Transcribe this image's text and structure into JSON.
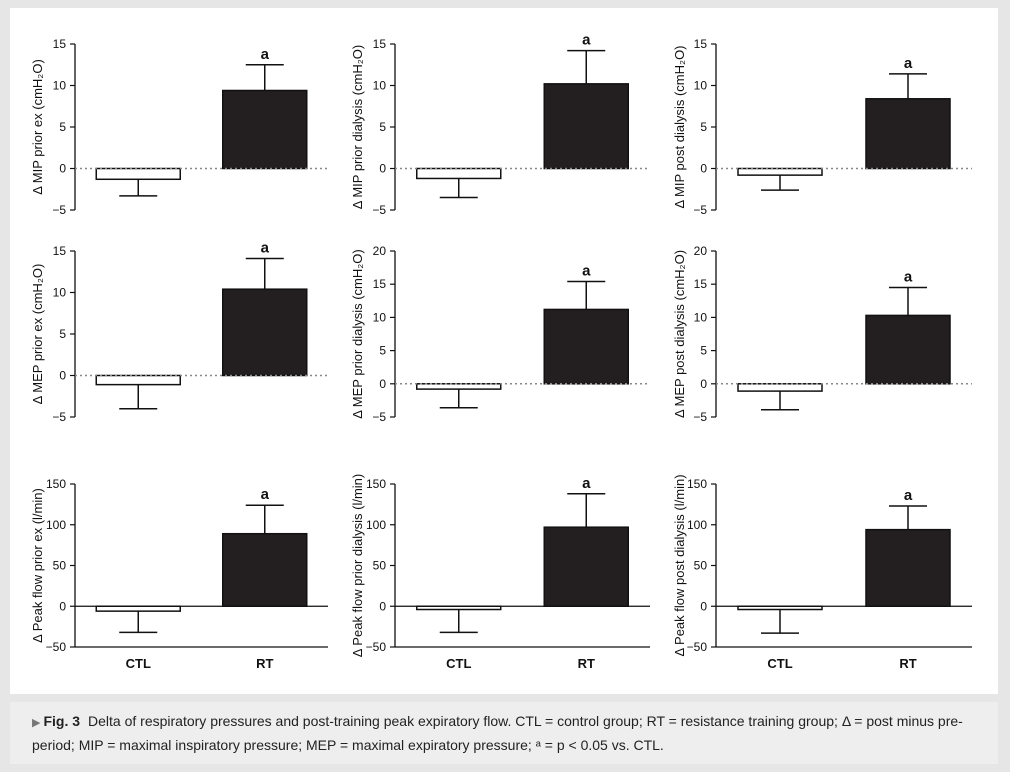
{
  "chart_data": [
    {
      "type": "bar",
      "ylabel": "Δ MIP prior ex (cmH₂O)",
      "categories": [
        "CTL",
        "RT"
      ],
      "values": [
        -1.3,
        9.4
      ],
      "errors": [
        2.0,
        3.1
      ],
      "annotations": [
        "",
        "a"
      ],
      "yticks": [
        -5,
        0,
        5,
        10,
        15
      ],
      "ylim": [
        -5,
        15
      ],
      "show_xlabels": false
    },
    {
      "type": "bar",
      "ylabel": "Δ MIP prior dialysis (cmH₂O)",
      "categories": [
        "CTL",
        "RT"
      ],
      "values": [
        -1.2,
        10.2
      ],
      "errors": [
        2.3,
        4.0
      ],
      "annotations": [
        "",
        "a"
      ],
      "yticks": [
        -5,
        0,
        5,
        10,
        15
      ],
      "ylim": [
        -5,
        15
      ],
      "show_xlabels": false
    },
    {
      "type": "bar",
      "ylabel": "Δ MIP post dialysis (cmH₂O)",
      "categories": [
        "CTL",
        "RT"
      ],
      "values": [
        -0.8,
        8.4
      ],
      "errors": [
        1.8,
        3.0
      ],
      "annotations": [
        "",
        "a"
      ],
      "yticks": [
        -5,
        0,
        5,
        10,
        15
      ],
      "ylim": [
        -5,
        15
      ],
      "show_xlabels": false
    },
    {
      "type": "bar",
      "ylabel": "Δ MEP prior ex (cmH₂O)",
      "categories": [
        "CTL",
        "RT"
      ],
      "values": [
        -1.1,
        10.4
      ],
      "errors": [
        2.9,
        3.7
      ],
      "annotations": [
        "",
        "a"
      ],
      "yticks": [
        -5,
        0,
        5,
        10,
        15
      ],
      "ylim": [
        -5,
        15
      ],
      "show_xlabels": false
    },
    {
      "type": "bar",
      "ylabel": "Δ MEP prior dialysis (cmH₂O)",
      "categories": [
        "CTL",
        "RT"
      ],
      "values": [
        -0.8,
        11.2
      ],
      "errors": [
        2.8,
        4.2
      ],
      "annotations": [
        "",
        "a"
      ],
      "yticks": [
        -5,
        0,
        5,
        10,
        15,
        20
      ],
      "ylim": [
        -5,
        20
      ],
      "show_xlabels": false
    },
    {
      "type": "bar",
      "ylabel": "Δ MEP post dialysis (cmH₂O)",
      "categories": [
        "CTL",
        "RT"
      ],
      "values": [
        -1.1,
        10.3
      ],
      "errors": [
        2.8,
        4.2
      ],
      "annotations": [
        "",
        "a"
      ],
      "yticks": [
        -5,
        0,
        5,
        10,
        15,
        20
      ],
      "ylim": [
        -5,
        20
      ],
      "show_xlabels": false
    },
    {
      "type": "bar",
      "ylabel": "Δ Peak flow prior ex (l/min)",
      "categories": [
        "CTL",
        "RT"
      ],
      "values": [
        -6,
        89
      ],
      "errors": [
        26,
        35
      ],
      "annotations": [
        "",
        "a"
      ],
      "yticks": [
        -50,
        0,
        50,
        100,
        150
      ],
      "ylim": [
        -50,
        150
      ],
      "show_xlabels": true
    },
    {
      "type": "bar",
      "ylabel": "Δ Peak flow prior dialysis (l/min)",
      "categories": [
        "CTL",
        "RT"
      ],
      "values": [
        -4,
        97
      ],
      "errors": [
        28,
        41
      ],
      "annotations": [
        "",
        "a"
      ],
      "yticks": [
        -50,
        0,
        50,
        100,
        150
      ],
      "ylim": [
        -50,
        150
      ],
      "show_xlabels": true
    },
    {
      "type": "bar",
      "ylabel": "Δ Peak flow post dialysis (l/min)",
      "categories": [
        "CTL",
        "RT"
      ],
      "values": [
        -4,
        94
      ],
      "errors": [
        29,
        29
      ],
      "annotations": [
        "",
        "a"
      ],
      "yticks": [
        -50,
        0,
        50,
        100,
        150
      ],
      "ylim": [
        -50,
        150
      ],
      "show_xlabels": true
    }
  ],
  "caption": {
    "label": "Fig. 3",
    "text": "Delta of respiratory pressures and post-training peak expiratory flow. CTL = control group; RT = resistance training group; Δ = post minus pre-period; MIP = maximal inspiratory pressure; MEP = maximal expiratory pressure; ᵃ = p < 0.05 vs. CTL."
  },
  "colors": {
    "bar_rt": "#231f20",
    "bar_ctl": "#ffffff",
    "axis": "#111111",
    "zero_line": "#888888"
  }
}
